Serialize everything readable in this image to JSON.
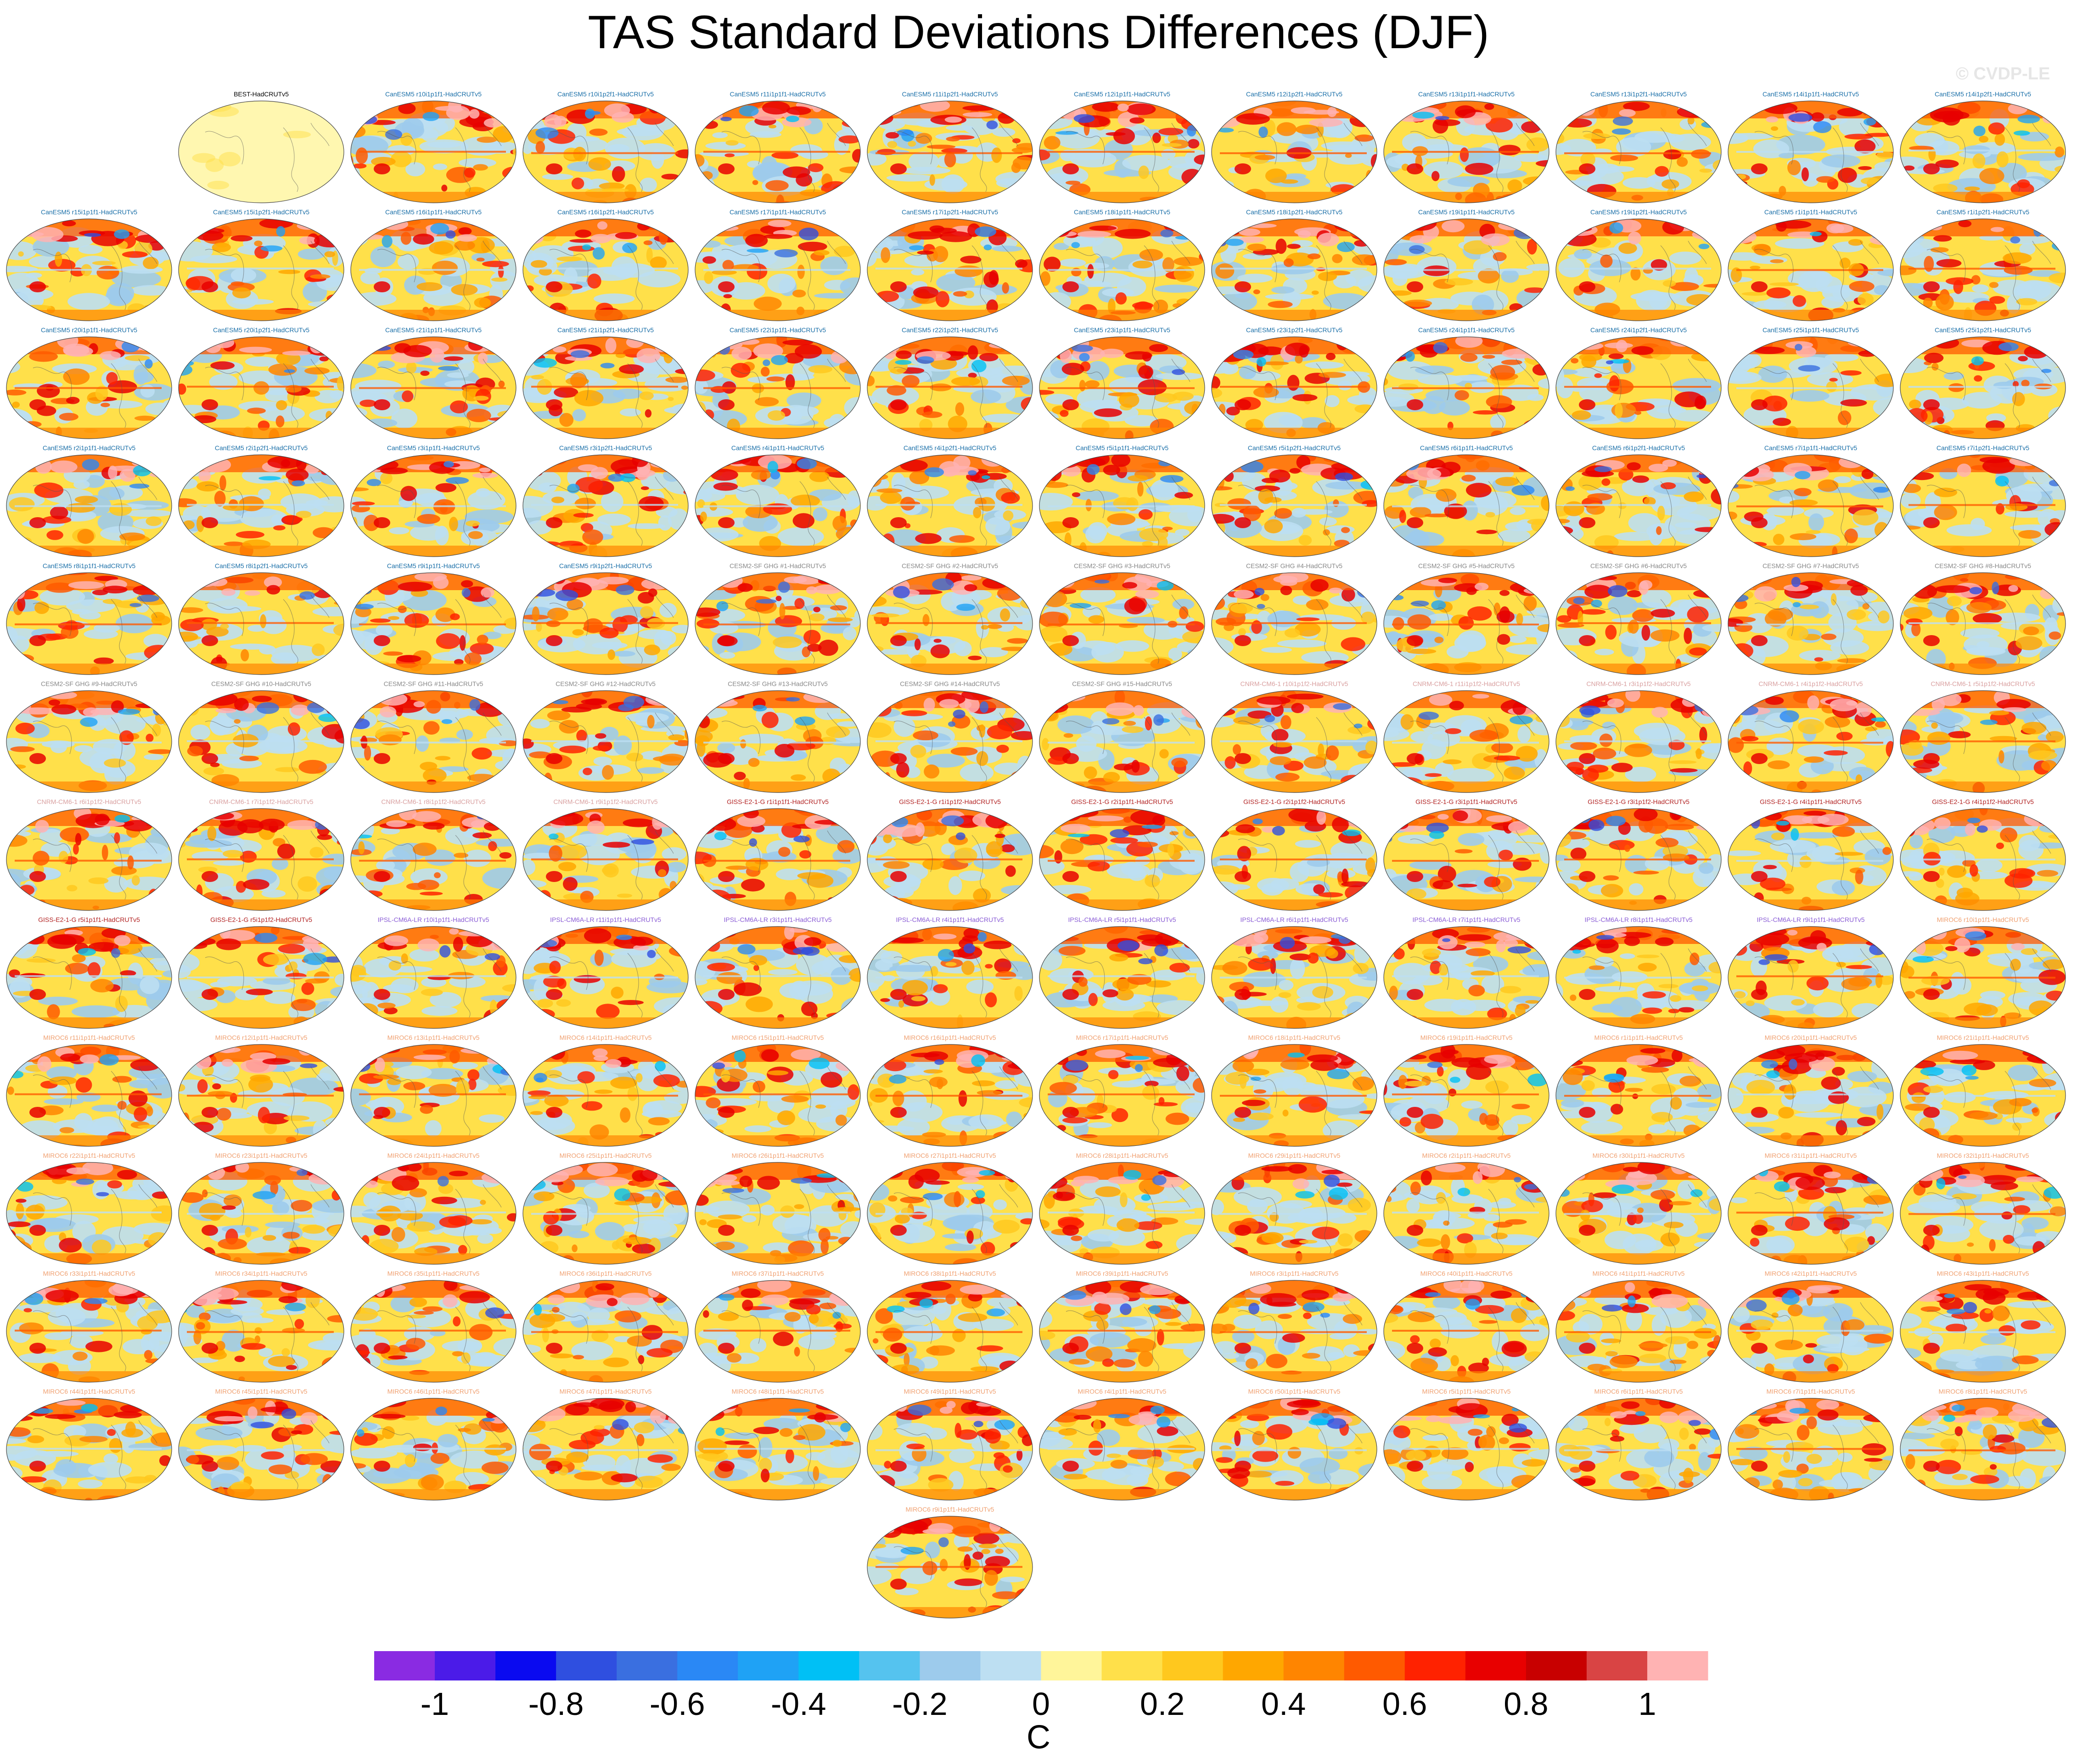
{
  "title": "TAS Standard Deviations Differences (DJF)",
  "watermark": "© CVDP-LE",
  "colorbar": {
    "unit": "C",
    "tick_labels": [
      "-1",
      "-0.8",
      "-0.6",
      "-0.4",
      "-0.2",
      "0",
      "0.2",
      "0.4",
      "0.6",
      "0.8",
      "1"
    ],
    "tick_values": [
      -1,
      -0.8,
      -0.6,
      -0.4,
      -0.2,
      0,
      0.2,
      0.4,
      0.6,
      0.8,
      1
    ],
    "range": [
      -1.1,
      1.1
    ],
    "colors": [
      "#8a2be2",
      "#4b1be8",
      "#0a0af0",
      "#2f4fe0",
      "#3a6fe0",
      "#2a88f5",
      "#1fa2f5",
      "#00c0f5",
      "#55c3ef",
      "#9dcbec",
      "#bddff2",
      "#fff59a",
      "#ffe04a",
      "#ffc81e",
      "#ffa700",
      "#ff8500",
      "#ff5a00",
      "#ff2200",
      "#e80000",
      "#c80000",
      "#d94444",
      "#ffb3b3"
    ]
  },
  "panels": [
    {
      "label": "BEST-HadCRUTv5",
      "color": "#000000"
    },
    {
      "label": "CanESM5 r10i1p1f1-HadCRUTv5",
      "color": "#1a6fa8"
    },
    {
      "label": "CanESM5 r10i1p2f1-HadCRUTv5",
      "color": "#1a6fa8"
    },
    {
      "label": "CanESM5 r11i1p1f1-HadCRUTv5",
      "color": "#1a6fa8"
    },
    {
      "label": "CanESM5 r11i1p2f1-HadCRUTv5",
      "color": "#1a6fa8"
    },
    {
      "label": "CanESM5 r12i1p1f1-HadCRUTv5",
      "color": "#1a6fa8"
    },
    {
      "label": "CanESM5 r12i1p2f1-HadCRUTv5",
      "color": "#1a6fa8"
    },
    {
      "label": "CanESM5 r13i1p1f1-HadCRUTv5",
      "color": "#1a6fa8"
    },
    {
      "label": "CanESM5 r13i1p2f1-HadCRUTv5",
      "color": "#1a6fa8"
    },
    {
      "label": "CanESM5 r14i1p1f1-HadCRUTv5",
      "color": "#1a6fa8"
    },
    {
      "label": "CanESM5 r14i1p2f1-HadCRUTv5",
      "color": "#1a6fa8"
    },
    {
      "label": "CanESM5 r15i1p1f1-HadCRUTv5",
      "color": "#1a6fa8"
    },
    {
      "label": "CanESM5 r15i1p2f1-HadCRUTv5",
      "color": "#1a6fa8"
    },
    {
      "label": "CanESM5 r16i1p1f1-HadCRUTv5",
      "color": "#1a6fa8"
    },
    {
      "label": "CanESM5 r16i1p2f1-HadCRUTv5",
      "color": "#1a6fa8"
    },
    {
      "label": "CanESM5 r17i1p1f1-HadCRUTv5",
      "color": "#1a6fa8"
    },
    {
      "label": "CanESM5 r17i1p2f1-HadCRUTv5",
      "color": "#1a6fa8"
    },
    {
      "label": "CanESM5 r18i1p1f1-HadCRUTv5",
      "color": "#1a6fa8"
    },
    {
      "label": "CanESM5 r18i1p2f1-HadCRUTv5",
      "color": "#1a6fa8"
    },
    {
      "label": "CanESM5 r19i1p1f1-HadCRUTv5",
      "color": "#1a6fa8"
    },
    {
      "label": "CanESM5 r19i1p2f1-HadCRUTv5",
      "color": "#1a6fa8"
    },
    {
      "label": "CanESM5 r1i1p1f1-HadCRUTv5",
      "color": "#1a6fa8"
    },
    {
      "label": "CanESM5 r1i1p2f1-HadCRUTv5",
      "color": "#1a6fa8"
    },
    {
      "label": "CanESM5 r20i1p1f1-HadCRUTv5",
      "color": "#1a6fa8"
    },
    {
      "label": "CanESM5 r20i1p2f1-HadCRUTv5",
      "color": "#1a6fa8"
    },
    {
      "label": "CanESM5 r21i1p1f1-HadCRUTv5",
      "color": "#1a6fa8"
    },
    {
      "label": "CanESM5 r21i1p2f1-HadCRUTv5",
      "color": "#1a6fa8"
    },
    {
      "label": "CanESM5 r22i1p1f1-HadCRUTv5",
      "color": "#1a6fa8"
    },
    {
      "label": "CanESM5 r22i1p2f1-HadCRUTv5",
      "color": "#1a6fa8"
    },
    {
      "label": "CanESM5 r23i1p1f1-HadCRUTv5",
      "color": "#1a6fa8"
    },
    {
      "label": "CanESM5 r23i1p2f1-HadCRUTv5",
      "color": "#1a6fa8"
    },
    {
      "label": "CanESM5 r24i1p1f1-HadCRUTv5",
      "color": "#1a6fa8"
    },
    {
      "label": "CanESM5 r24i1p2f1-HadCRUTv5",
      "color": "#1a6fa8"
    },
    {
      "label": "CanESM5 r25i1p1f1-HadCRUTv5",
      "color": "#1a6fa8"
    },
    {
      "label": "CanESM5 r25i1p2f1-HadCRUTv5",
      "color": "#1a6fa8"
    },
    {
      "label": "CanESM5 r2i1p1f1-HadCRUTv5",
      "color": "#1a6fa8"
    },
    {
      "label": "CanESM5 r2i1p2f1-HadCRUTv5",
      "color": "#1a6fa8"
    },
    {
      "label": "CanESM5 r3i1p1f1-HadCRUTv5",
      "color": "#1a6fa8"
    },
    {
      "label": "CanESM5 r3i1p2f1-HadCRUTv5",
      "color": "#1a6fa8"
    },
    {
      "label": "CanESM5 r4i1p1f1-HadCRUTv5",
      "color": "#1a6fa8"
    },
    {
      "label": "CanESM5 r4i1p2f1-HadCRUTv5",
      "color": "#1a6fa8"
    },
    {
      "label": "CanESM5 r5i1p1f1-HadCRUTv5",
      "color": "#1a6fa8"
    },
    {
      "label": "CanESM5 r5i1p2f1-HadCRUTv5",
      "color": "#1a6fa8"
    },
    {
      "label": "CanESM5 r6i1p1f1-HadCRUTv5",
      "color": "#1a6fa8"
    },
    {
      "label": "CanESM5 r6i1p2f1-HadCRUTv5",
      "color": "#1a6fa8"
    },
    {
      "label": "CanESM5 r7i1p1f1-HadCRUTv5",
      "color": "#1a6fa8"
    },
    {
      "label": "CanESM5 r7i1p2f1-HadCRUTv5",
      "color": "#1a6fa8"
    },
    {
      "label": "CanESM5 r8i1p1f1-HadCRUTv5",
      "color": "#1a6fa8"
    },
    {
      "label": "CanESM5 r8i1p2f1-HadCRUTv5",
      "color": "#1a6fa8"
    },
    {
      "label": "CanESM5 r9i1p1f1-HadCRUTv5",
      "color": "#1a6fa8"
    },
    {
      "label": "CanESM5 r9i1p2f1-HadCRUTv5",
      "color": "#1a6fa8"
    },
    {
      "label": "CESM2-SF GHG #1-HadCRUTv5",
      "color": "#888888"
    },
    {
      "label": "CESM2-SF GHG #2-HadCRUTv5",
      "color": "#888888"
    },
    {
      "label": "CESM2-SF GHG #3-HadCRUTv5",
      "color": "#888888"
    },
    {
      "label": "CESM2-SF GHG #4-HadCRUTv5",
      "color": "#888888"
    },
    {
      "label": "CESM2-SF GHG #5-HadCRUTv5",
      "color": "#888888"
    },
    {
      "label": "CESM2-SF GHG #6-HadCRUTv5",
      "color": "#888888"
    },
    {
      "label": "CESM2-SF GHG #7-HadCRUTv5",
      "color": "#888888"
    },
    {
      "label": "CESM2-SF GHG #8-HadCRUTv5",
      "color": "#888888"
    },
    {
      "label": "CESM2-SF GHG #9-HadCRUTv5",
      "color": "#888888"
    },
    {
      "label": "CESM2-SF GHG #10-HadCRUTv5",
      "color": "#888888"
    },
    {
      "label": "CESM2-SF GHG #11-HadCRUTv5",
      "color": "#888888"
    },
    {
      "label": "CESM2-SF GHG #12-HadCRUTv5",
      "color": "#888888"
    },
    {
      "label": "CESM2-SF GHG #13-HadCRUTv5",
      "color": "#888888"
    },
    {
      "label": "CESM2-SF GHG #14-HadCRUTv5",
      "color": "#888888"
    },
    {
      "label": "CESM2-SF GHG #15-HadCRUTv5",
      "color": "#888888"
    },
    {
      "label": "CNRM-CM6-1 r10i1p1f2-HadCRUTv5",
      "color": "#d9a0a0"
    },
    {
      "label": "CNRM-CM6-1 r11i1p1f2-HadCRUTv5",
      "color": "#d9a0a0"
    },
    {
      "label": "CNRM-CM6-1 r3i1p1f2-HadCRUTv5",
      "color": "#d9a0a0"
    },
    {
      "label": "CNRM-CM6-1 r4i1p1f2-HadCRUTv5",
      "color": "#d9a0a0"
    },
    {
      "label": "CNRM-CM6-1 r5i1p1f2-HadCRUTv5",
      "color": "#d9a0a0"
    },
    {
      "label": "CNRM-CM6-1 r6i1p1f2-HadCRUTv5",
      "color": "#d9a0a0"
    },
    {
      "label": "CNRM-CM6-1 r7i1p1f2-HadCRUTv5",
      "color": "#d9a0a0"
    },
    {
      "label": "CNRM-CM6-1 r8i1p1f2-HadCRUTv5",
      "color": "#d9a0a0"
    },
    {
      "label": "CNRM-CM6-1 r9i1p1f2-HadCRUTv5",
      "color": "#d9a0a0"
    },
    {
      "label": "GISS-E2-1-G r1i1p1f1-HadCRUTv5",
      "color": "#b22222"
    },
    {
      "label": "GISS-E2-1-G r1i1p1f2-HadCRUTv5",
      "color": "#b22222"
    },
    {
      "label": "GISS-E2-1-G r2i1p1f1-HadCRUTv5",
      "color": "#b22222"
    },
    {
      "label": "GISS-E2-1-G r2i1p1f2-HadCRUTv5",
      "color": "#b22222"
    },
    {
      "label": "GISS-E2-1-G r3i1p1f1-HadCRUTv5",
      "color": "#b22222"
    },
    {
      "label": "GISS-E2-1-G r3i1p1f2-HadCRUTv5",
      "color": "#b22222"
    },
    {
      "label": "GISS-E2-1-G r4i1p1f1-HadCRUTv5",
      "color": "#b22222"
    },
    {
      "label": "GISS-E2-1-G r4i1p1f2-HadCRUTv5",
      "color": "#b22222"
    },
    {
      "label": "GISS-E2-1-G r5i1p1f1-HadCRUTv5",
      "color": "#b22222"
    },
    {
      "label": "GISS-E2-1-G r5i1p1f2-HadCRUTv5",
      "color": "#b22222"
    },
    {
      "label": "IPSL-CM6A-LR r10i1p1f1-HadCRUTv5",
      "color": "#8a5cd6"
    },
    {
      "label": "IPSL-CM6A-LR r11i1p1f1-HadCRUTv5",
      "color": "#8a5cd6"
    },
    {
      "label": "IPSL-CM6A-LR r3i1p1f1-HadCRUTv5",
      "color": "#8a5cd6"
    },
    {
      "label": "IPSL-CM6A-LR r4i1p1f1-HadCRUTv5",
      "color": "#8a5cd6"
    },
    {
      "label": "IPSL-CM6A-LR r5i1p1f1-HadCRUTv5",
      "color": "#8a5cd6"
    },
    {
      "label": "IPSL-CM6A-LR r6i1p1f1-HadCRUTv5",
      "color": "#8a5cd6"
    },
    {
      "label": "IPSL-CM6A-LR r7i1p1f1-HadCRUTv5",
      "color": "#8a5cd6"
    },
    {
      "label": "IPSL-CM6A-LR r8i1p1f1-HadCRUTv5",
      "color": "#8a5cd6"
    },
    {
      "label": "IPSL-CM6A-LR r9i1p1f1-HadCRUTv5",
      "color": "#8a5cd6"
    },
    {
      "label": "MIROC6 r10i1p1f1-HadCRUTv5",
      "color": "#f0a070"
    },
    {
      "label": "MIROC6 r11i1p1f1-HadCRUTv5",
      "color": "#f0a070"
    },
    {
      "label": "MIROC6 r12i1p1f1-HadCRUTv5",
      "color": "#f0a070"
    },
    {
      "label": "MIROC6 r13i1p1f1-HadCRUTv5",
      "color": "#f0a070"
    },
    {
      "label": "MIROC6 r14i1p1f1-HadCRUTv5",
      "color": "#f0a070"
    },
    {
      "label": "MIROC6 r15i1p1f1-HadCRUTv5",
      "color": "#f0a070"
    },
    {
      "label": "MIROC6 r16i1p1f1-HadCRUTv5",
      "color": "#f0a070"
    },
    {
      "label": "MIROC6 r17i1p1f1-HadCRUTv5",
      "color": "#f0a070"
    },
    {
      "label": "MIROC6 r18i1p1f1-HadCRUTv5",
      "color": "#f0a070"
    },
    {
      "label": "MIROC6 r19i1p1f1-HadCRUTv5",
      "color": "#f0a070"
    },
    {
      "label": "MIROC6 r1i1p1f1-HadCRUTv5",
      "color": "#f0a070"
    },
    {
      "label": "MIROC6 r20i1p1f1-HadCRUTv5",
      "color": "#f0a070"
    },
    {
      "label": "MIROC6 r21i1p1f1-HadCRUTv5",
      "color": "#f0a070"
    },
    {
      "label": "MIROC6 r22i1p1f1-HadCRUTv5",
      "color": "#f0a070"
    },
    {
      "label": "MIROC6 r23i1p1f1-HadCRUTv5",
      "color": "#f0a070"
    },
    {
      "label": "MIROC6 r24i1p1f1-HadCRUTv5",
      "color": "#f0a070"
    },
    {
      "label": "MIROC6 r25i1p1f1-HadCRUTv5",
      "color": "#f0a070"
    },
    {
      "label": "MIROC6 r26i1p1f1-HadCRUTv5",
      "color": "#f0a070"
    },
    {
      "label": "MIROC6 r27i1p1f1-HadCRUTv5",
      "color": "#f0a070"
    },
    {
      "label": "MIROC6 r28i1p1f1-HadCRUTv5",
      "color": "#f0a070"
    },
    {
      "label": "MIROC6 r29i1p1f1-HadCRUTv5",
      "color": "#f0a070"
    },
    {
      "label": "MIROC6 r2i1p1f1-HadCRUTv5",
      "color": "#f0a070"
    },
    {
      "label": "MIROC6 r30i1p1f1-HadCRUTv5",
      "color": "#f0a070"
    },
    {
      "label": "MIROC6 r31i1p1f1-HadCRUTv5",
      "color": "#f0a070"
    },
    {
      "label": "MIROC6 r32i1p1f1-HadCRUTv5",
      "color": "#f0a070"
    },
    {
      "label": "MIROC6 r33i1p1f1-HadCRUTv5",
      "color": "#f0a070"
    },
    {
      "label": "MIROC6 r34i1p1f1-HadCRUTv5",
      "color": "#f0a070"
    },
    {
      "label": "MIROC6 r35i1p1f1-HadCRUTv5",
      "color": "#f0a070"
    },
    {
      "label": "MIROC6 r36i1p1f1-HadCRUTv5",
      "color": "#f0a070"
    },
    {
      "label": "MIROC6 r37i1p1f1-HadCRUTv5",
      "color": "#f0a070"
    },
    {
      "label": "MIROC6 r38i1p1f1-HadCRUTv5",
      "color": "#f0a070"
    },
    {
      "label": "MIROC6 r39i1p1f1-HadCRUTv5",
      "color": "#f0a070"
    },
    {
      "label": "MIROC6 r3i1p1f1-HadCRUTv5",
      "color": "#f0a070"
    },
    {
      "label": "MIROC6 r40i1p1f1-HadCRUTv5",
      "color": "#f0a070"
    },
    {
      "label": "MIROC6 r41i1p1f1-HadCRUTv5",
      "color": "#f0a070"
    },
    {
      "label": "MIROC6 r42i1p1f1-HadCRUTv5",
      "color": "#f0a070"
    },
    {
      "label": "MIROC6 r43i1p1f1-HadCRUTv5",
      "color": "#f0a070"
    },
    {
      "label": "MIROC6 r44i1p1f1-HadCRUTv5",
      "color": "#f0a070"
    },
    {
      "label": "MIROC6 r45i1p1f1-HadCRUTv5",
      "color": "#f0a070"
    },
    {
      "label": "MIROC6 r46i1p1f1-HadCRUTv5",
      "color": "#f0a070"
    },
    {
      "label": "MIROC6 r47i1p1f1-HadCRUTv5",
      "color": "#f0a070"
    },
    {
      "label": "MIROC6 r48i1p1f1-HadCRUTv5",
      "color": "#f0a070"
    },
    {
      "label": "MIROC6 r49i1p1f1-HadCRUTv5",
      "color": "#f0a070"
    },
    {
      "label": "MIROC6 r4i1p1f1-HadCRUTv5",
      "color": "#f0a070"
    },
    {
      "label": "MIROC6 r50i1p1f1-HadCRUTv5",
      "color": "#f0a070"
    },
    {
      "label": "MIROC6 r5i1p1f1-HadCRUTv5",
      "color": "#f0a070"
    },
    {
      "label": "MIROC6 r6i1p1f1-HadCRUTv5",
      "color": "#f0a070"
    },
    {
      "label": "MIROC6 r7i1p1f1-HadCRUTv5",
      "color": "#f0a070"
    },
    {
      "label": "MIROC6 r8i1p1f1-HadCRUTv5",
      "color": "#f0a070"
    },
    {
      "label": "MIROC6 r9i1p1f1-HadCRUTv5",
      "color": "#f0a070"
    }
  ]
}
